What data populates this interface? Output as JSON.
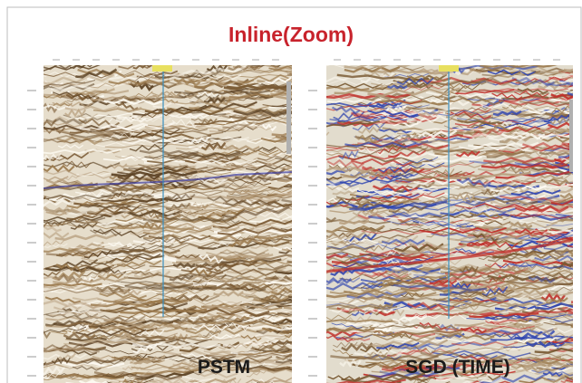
{
  "header": {
    "title": "Inline(Zoom)"
  },
  "panels": [
    {
      "label": "PSTM"
    },
    {
      "label": "SGD (TIME)"
    }
  ]
}
